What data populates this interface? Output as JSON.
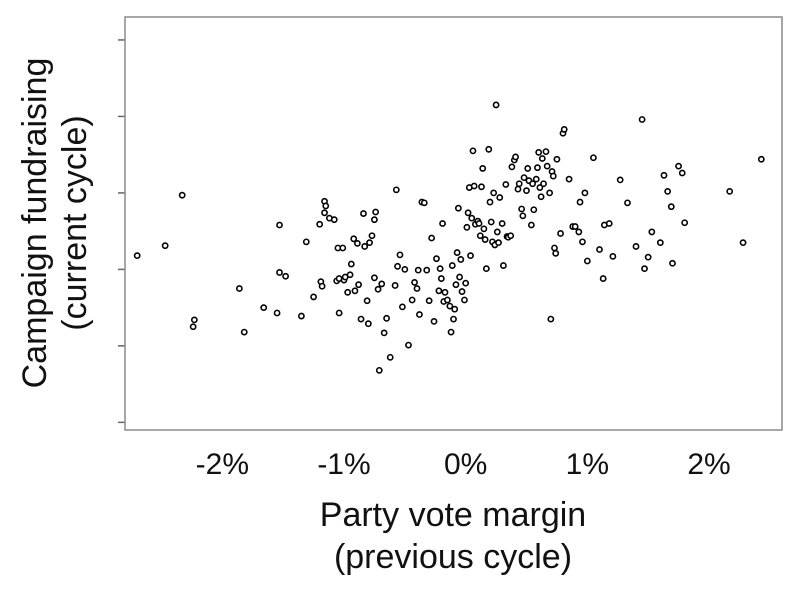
{
  "chart_data": {
    "type": "scatter",
    "title": "",
    "xlabel": [
      "Party vote margin",
      "(previous cycle)"
    ],
    "ylabel": [
      "Campaign fundraising",
      "(current cycle)"
    ],
    "xlim": [
      -2.8,
      2.6
    ],
    "ylim": [
      -3.1,
      2.3
    ],
    "xticks": [
      -2,
      -1,
      0,
      1,
      2
    ],
    "xtick_labels": [
      "-2%",
      "-1%",
      "0%",
      "1%",
      "2%"
    ],
    "yticks": [
      -3,
      -2,
      -1,
      0,
      1,
      2
    ],
    "ytick_labels": [
      "",
      "",
      "",
      "",
      "",
      ""
    ],
    "grid": false,
    "point_color": "#000000",
    "points": [
      [
        -2.7,
        -0.82
      ],
      [
        -2.47,
        -0.69
      ],
      [
        -2.33,
        -0.03
      ],
      [
        -2.23,
        -1.66
      ],
      [
        -2.24,
        -1.75
      ],
      [
        -1.86,
        -1.25
      ],
      [
        -1.82,
        -1.82
      ],
      [
        -1.66,
        -1.5
      ],
      [
        -1.55,
        -1.57
      ],
      [
        -1.53,
        -0.42
      ],
      [
        -1.53,
        -1.04
      ],
      [
        -1.48,
        -1.09
      ],
      [
        -1.35,
        -1.61
      ],
      [
        -1.31,
        -0.64
      ],
      [
        -1.25,
        -1.36
      ],
      [
        -1.2,
        -0.41
      ],
      [
        -1.19,
        -1.16
      ],
      [
        -1.18,
        -1.22
      ],
      [
        -1.16,
        -0.26
      ],
      [
        -1.16,
        -0.11
      ],
      [
        -1.15,
        -0.17
      ],
      [
        -1.12,
        -0.33
      ],
      [
        -1.08,
        -0.35
      ],
      [
        -1.06,
        -1.15
      ],
      [
        -1.05,
        -0.72
      ],
      [
        -1.04,
        -1.57
      ],
      [
        -1.04,
        -1.12
      ],
      [
        -1.01,
        -0.72
      ],
      [
        -1.0,
        -1.14
      ],
      [
        -0.99,
        -1.1
      ],
      [
        -0.97,
        -1.3
      ],
      [
        -0.95,
        -1.07
      ],
      [
        -0.94,
        -0.93
      ],
      [
        -0.92,
        -0.6
      ],
      [
        -0.91,
        -1.28
      ],
      [
        -0.89,
        -0.66
      ],
      [
        -0.88,
        -1.2
      ],
      [
        -0.86,
        -1.65
      ],
      [
        -0.84,
        -0.27
      ],
      [
        -0.83,
        -0.7
      ],
      [
        -0.81,
        -1.41
      ],
      [
        -0.8,
        -1.71
      ],
      [
        -0.79,
        -0.65
      ],
      [
        -0.77,
        -0.56
      ],
      [
        -0.75,
        -1.11
      ],
      [
        -0.75,
        -0.35
      ],
      [
        -0.74,
        -0.25
      ],
      [
        -0.72,
        -1.26
      ],
      [
        -0.71,
        -2.32
      ],
      [
        -0.69,
        -1.19
      ],
      [
        -0.67,
        -1.83
      ],
      [
        -0.65,
        -1.64
      ],
      [
        -0.62,
        -2.15
      ],
      [
        -0.58,
        -1.21
      ],
      [
        -0.57,
        0.04
      ],
      [
        -0.56,
        -0.96
      ],
      [
        -0.54,
        -0.81
      ],
      [
        -0.52,
        -1.49
      ],
      [
        -0.5,
        -1.0
      ],
      [
        -0.47,
        -1.99
      ],
      [
        -0.44,
        -1.4
      ],
      [
        -0.42,
        -1.17
      ],
      [
        -0.4,
        -1.25
      ],
      [
        -0.39,
        -1.01
      ],
      [
        -0.38,
        -1.59
      ],
      [
        -0.36,
        -0.12
      ],
      [
        -0.34,
        -0.13
      ],
      [
        -0.32,
        -1.01
      ],
      [
        -0.3,
        -1.41
      ],
      [
        -0.28,
        -0.59
      ],
      [
        -0.26,
        -1.68
      ],
      [
        -0.24,
        -0.86
      ],
      [
        -0.22,
        -1.28
      ],
      [
        -0.21,
        -0.99
      ],
      [
        -0.2,
        -1.12
      ],
      [
        -0.19,
        -0.4
      ],
      [
        -0.18,
        -1.42
      ],
      [
        -0.17,
        -1.3
      ],
      [
        -0.15,
        -1.4
      ],
      [
        -0.13,
        -1.48
      ],
      [
        -0.12,
        -1.82
      ],
      [
        -0.11,
        -0.95
      ],
      [
        -0.1,
        -1.65
      ],
      [
        -0.09,
        -1.52
      ],
      [
        -0.08,
        -1.2
      ],
      [
        -0.07,
        -0.78
      ],
      [
        -0.06,
        -0.2
      ],
      [
        -0.05,
        -1.1
      ],
      [
        -0.04,
        -0.87
      ],
      [
        -0.03,
        -1.29
      ],
      [
        -0.01,
        -1.4
      ],
      [
        0.0,
        -1.18
      ],
      [
        0.01,
        -0.45
      ],
      [
        0.02,
        -0.26
      ],
      [
        0.03,
        0.07
      ],
      [
        0.04,
        -0.82
      ],
      [
        0.05,
        -0.33
      ],
      [
        0.06,
        0.55
      ],
      [
        0.07,
        0.09
      ],
      [
        0.08,
        -0.41
      ],
      [
        0.1,
        -0.37
      ],
      [
        0.11,
        -0.4
      ],
      [
        0.12,
        -0.56
      ],
      [
        0.13,
        0.08
      ],
      [
        0.14,
        0.32
      ],
      [
        0.15,
        -0.47
      ],
      [
        0.16,
        -0.61
      ],
      [
        0.17,
        -0.99
      ],
      [
        0.19,
        0.57
      ],
      [
        0.2,
        -0.12
      ],
      [
        0.21,
        -0.38
      ],
      [
        0.22,
        -0.64
      ],
      [
        0.23,
        0.0
      ],
      [
        0.24,
        -0.68
      ],
      [
        0.25,
        1.15
      ],
      [
        0.26,
        -0.51
      ],
      [
        0.27,
        -0.65
      ],
      [
        0.28,
        -0.06
      ],
      [
        0.3,
        -0.4
      ],
      [
        0.31,
        -0.95
      ],
      [
        0.33,
        0.11
      ],
      [
        0.34,
        -0.57
      ],
      [
        0.35,
        -0.58
      ],
      [
        0.37,
        -0.56
      ],
      [
        0.38,
        0.34
      ],
      [
        0.4,
        0.43
      ],
      [
        0.41,
        0.47
      ],
      [
        0.43,
        0.05
      ],
      [
        0.44,
        0.12
      ],
      [
        0.46,
        -0.21
      ],
      [
        0.47,
        -0.3
      ],
      [
        0.48,
        0.2
      ],
      [
        0.5,
        0.03
      ],
      [
        0.51,
        0.32
      ],
      [
        0.52,
        0.16
      ],
      [
        0.54,
        -0.42
      ],
      [
        0.55,
        0.12
      ],
      [
        0.56,
        -0.22
      ],
      [
        0.58,
        0.18
      ],
      [
        0.59,
        0.33
      ],
      [
        0.6,
        0.53
      ],
      [
        0.61,
        0.07
      ],
      [
        0.62,
        -0.05
      ],
      [
        0.63,
        0.45
      ],
      [
        0.64,
        0.12
      ],
      [
        0.66,
        0.54
      ],
      [
        0.67,
        0.35
      ],
      [
        0.69,
        0.0
      ],
      [
        0.7,
        -1.65
      ],
      [
        0.71,
        0.28
      ],
      [
        0.72,
        0.22
      ],
      [
        0.73,
        -0.72
      ],
      [
        0.74,
        -0.79
      ],
      [
        0.75,
        0.44
      ],
      [
        0.78,
        -0.53
      ],
      [
        0.8,
        0.78
      ],
      [
        0.81,
        0.83
      ],
      [
        0.85,
        0.18
      ],
      [
        0.88,
        -0.44
      ],
      [
        0.9,
        -0.44
      ],
      [
        0.93,
        -0.51
      ],
      [
        0.94,
        -0.12
      ],
      [
        0.96,
        -0.64
      ],
      [
        0.98,
        0.0
      ],
      [
        1.0,
        -0.89
      ],
      [
        1.05,
        0.46
      ],
      [
        1.1,
        -0.74
      ],
      [
        1.13,
        -1.12
      ],
      [
        1.14,
        -0.42
      ],
      [
        1.18,
        -0.4
      ],
      [
        1.21,
        -0.83
      ],
      [
        1.27,
        0.17
      ],
      [
        1.33,
        -0.13
      ],
      [
        1.4,
        -0.7
      ],
      [
        1.45,
        0.96
      ],
      [
        1.47,
        -0.99
      ],
      [
        1.5,
        -0.84
      ],
      [
        1.53,
        -0.51
      ],
      [
        1.6,
        -0.65
      ],
      [
        1.63,
        0.23
      ],
      [
        1.66,
        0.02
      ],
      [
        1.69,
        -0.18
      ],
      [
        1.7,
        -0.92
      ],
      [
        1.75,
        0.35
      ],
      [
        1.78,
        0.26
      ],
      [
        1.8,
        -0.39
      ],
      [
        2.17,
        0.02
      ],
      [
        2.28,
        -0.65
      ],
      [
        2.43,
        0.44
      ]
    ]
  }
}
